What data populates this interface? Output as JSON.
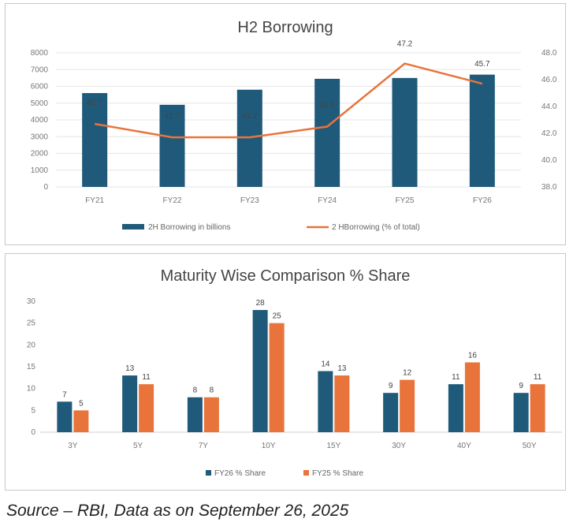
{
  "colors": {
    "blue": "#1f5a7a",
    "orange": "#e8743b"
  },
  "chart_data": [
    {
      "type": "bar",
      "title": "H2 Borrowing",
      "categories": [
        "FY21",
        "FY22",
        "FY23",
        "FY24",
        "FY25",
        "FY26"
      ],
      "series": [
        {
          "name": "2H Borrowing in billions",
          "type": "bar",
          "axis": "left",
          "values": [
            5600,
            4900,
            5800,
            6450,
            6500,
            6700
          ]
        },
        {
          "name": "2 HBorrowing (% of total)",
          "type": "line",
          "axis": "right",
          "values": [
            42.7,
            41.7,
            41.7,
            42.5,
            47.2,
            45.7
          ]
        }
      ],
      "data_labels": [
        "42.7",
        "41.7",
        "41.7",
        "42.5",
        "47.2",
        "45.7"
      ],
      "y_left": {
        "ylim": [
          0,
          8000
        ],
        "ticks": [
          "0",
          "1000",
          "2000",
          "3000",
          "4000",
          "5000",
          "6000",
          "7000",
          "8000"
        ]
      },
      "y_right": {
        "ylim": [
          38,
          48
        ],
        "ticks": [
          "38.0",
          "40.0",
          "42.0",
          "44.0",
          "46.0",
          "48.0"
        ]
      },
      "legend": "bottom"
    },
    {
      "type": "bar",
      "title": "Maturity Wise Comparison % Share",
      "categories": [
        "3Y",
        "5Y",
        "7Y",
        "10Y",
        "15Y",
        "30Y",
        "40Y",
        "50Y"
      ],
      "series": [
        {
          "name": "FY26 % Share",
          "values": [
            7,
            13,
            8,
            28,
            14,
            9,
            11,
            9
          ]
        },
        {
          "name": "FY25 % Share",
          "values": [
            5,
            11,
            8,
            25,
            13,
            12,
            16,
            11
          ]
        }
      ],
      "data_labels": [
        [
          "7",
          "13",
          "8",
          "28",
          "14",
          "9",
          "11",
          "9"
        ],
        [
          "5",
          "11",
          "8",
          "25",
          "13",
          "12",
          "16",
          "11"
        ]
      ],
      "ylim": [
        0,
        30
      ],
      "yticks": [
        "0",
        "5",
        "10",
        "15",
        "20",
        "25",
        "30"
      ],
      "legend": "bottom"
    }
  ],
  "source": "Source – RBI, Data as on September 26, 2025"
}
